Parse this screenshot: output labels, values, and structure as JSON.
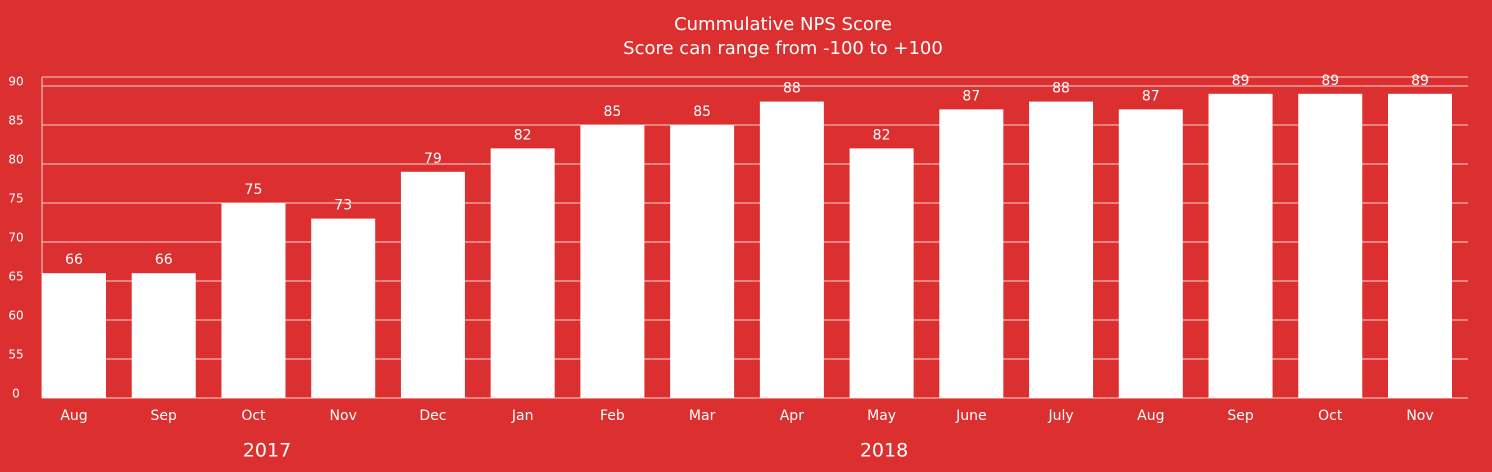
{
  "chart_data": {
    "type": "bar",
    "title": "Cummulative NPS Score",
    "subtitle": "Score can range from -100 to +100",
    "categories": [
      "Aug",
      "Sep",
      "Oct",
      "Nov",
      "Dec",
      "Jan",
      "Feb",
      "Mar",
      "Apr",
      "May",
      "June",
      "July",
      "Aug",
      "Sep",
      "Oct",
      "Nov"
    ],
    "values": [
      66,
      66,
      75,
      73,
      79,
      82,
      85,
      85,
      88,
      82,
      87,
      88,
      87,
      89,
      89,
      89
    ],
    "year_labels": [
      "2017",
      "2018"
    ],
    "color": "#ffffff",
    "background": "#dc2f2f",
    "ylim": [
      0,
      90
    ],
    "yticks": [
      0,
      55,
      60,
      65,
      70,
      75,
      80,
      85,
      90
    ],
    "axis_break": true,
    "grid": true
  }
}
